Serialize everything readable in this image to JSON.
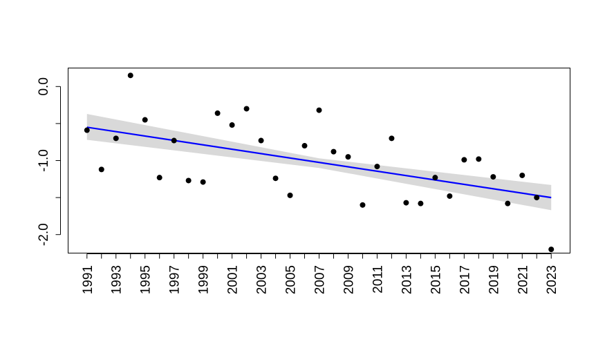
{
  "chart_data": {
    "type": "scatter",
    "title": "",
    "xlabel": "",
    "ylabel": "",
    "xlim": [
      1989.7,
      2024.3
    ],
    "ylim": [
      -2.25,
      0.25
    ],
    "x_ticks": [
      1991,
      1993,
      1995,
      1997,
      1999,
      2001,
      2003,
      2005,
      2007,
      2009,
      2011,
      2013,
      2015,
      2017,
      2019,
      2021,
      2023
    ],
    "x_tick_labels": [
      "1991",
      "1993",
      "1995",
      "1997",
      "1999",
      "2001",
      "2003",
      "2005",
      "2007",
      "2009",
      "2011",
      "2013",
      "2015",
      "2017",
      "2019",
      "2021",
      "2023"
    ],
    "x_minor_ticks": [
      1992,
      1994,
      1996,
      1998,
      2000,
      2002,
      2004,
      2006,
      2008,
      2010,
      2012,
      2014,
      2016,
      2018,
      2020,
      2022
    ],
    "y_ticks": [
      0.0,
      -1.0,
      -2.0
    ],
    "y_tick_labels": [
      "0.0",
      "-1.0",
      "-2.0"
    ],
    "y_minor_ticks": [
      -0.5,
      -1.5
    ],
    "points": {
      "x": [
        1991,
        1992,
        1993,
        1994,
        1995,
        1996,
        1997,
        1998,
        1999,
        2000,
        2001,
        2002,
        2003,
        2004,
        2005,
        2006,
        2007,
        2008,
        2009,
        2010,
        2011,
        2012,
        2013,
        2014,
        2015,
        2016,
        2017,
        2018,
        2019,
        2020,
        2021,
        2022,
        2023
      ],
      "y": [
        -0.59,
        -1.12,
        -0.7,
        0.15,
        -0.45,
        -1.23,
        -0.73,
        -1.27,
        -1.29,
        -0.36,
        -0.52,
        -0.3,
        -0.73,
        -1.24,
        -1.47,
        -0.8,
        -0.32,
        -0.88,
        -0.95,
        -1.6,
        -1.08,
        -0.7,
        -1.57,
        -1.58,
        -1.23,
        -1.48,
        -0.99,
        -0.98,
        -1.22,
        -1.58,
        -1.2,
        -1.5,
        -2.2
      ],
      "color": "#000000"
    },
    "trend_line": {
      "x": [
        1991,
        2023
      ],
      "y": [
        -0.55,
        -1.5
      ],
      "color": "#0000ff"
    },
    "confidence_band": {
      "x": [
        1991,
        2007,
        2023
      ],
      "upper": [
        -0.37,
        -0.97,
        -1.33
      ],
      "lower": [
        -0.72,
        -1.1,
        -1.67
      ],
      "color": "#d9d9d9"
    },
    "grid": false,
    "legend": "none"
  }
}
